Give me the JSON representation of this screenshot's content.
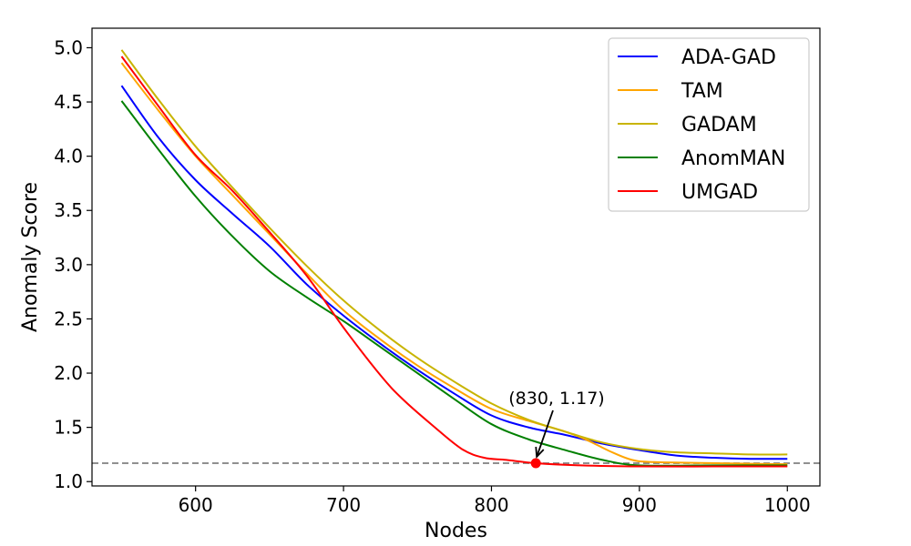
{
  "chart_data": {
    "type": "line",
    "title": "",
    "xlabel": "Nodes",
    "ylabel": "Anomaly Score",
    "xlim": [
      530,
      1022
    ],
    "ylim": [
      0.96,
      5.18
    ],
    "xticks": [
      600,
      700,
      800,
      900,
      1000
    ],
    "yticks": [
      1.0,
      1.5,
      2.0,
      2.5,
      3.0,
      3.5,
      4.0,
      4.5,
      5.0
    ],
    "xtick_labels": [
      "600",
      "700",
      "800",
      "900",
      "1000"
    ],
    "ytick_labels": [
      "1.0",
      "1.5",
      "2.0",
      "2.5",
      "3.0",
      "3.5",
      "4.0",
      "4.5",
      "5.0"
    ],
    "legend_position": "top-right",
    "reference_line": {
      "y": 1.17,
      "style": "dashed",
      "color": "#808080"
    },
    "annotation": {
      "x": 830,
      "y": 1.17,
      "text": "(830, 1.17)",
      "color": "#ff0000"
    },
    "series": [
      {
        "name": "ADA-GAD",
        "color": "#0000ff",
        "x": [
          550,
          575,
          600,
          625,
          650,
          675,
          700,
          725,
          750,
          775,
          800,
          825,
          850,
          875,
          900,
          925,
          950,
          975,
          1000
        ],
        "y": [
          4.65,
          4.17,
          3.78,
          3.47,
          3.17,
          2.82,
          2.53,
          2.27,
          2.03,
          1.81,
          1.61,
          1.5,
          1.43,
          1.35,
          1.29,
          1.24,
          1.22,
          1.21,
          1.21
        ]
      },
      {
        "name": "TAM",
        "color": "#ffa500",
        "x": [
          550,
          575,
          600,
          625,
          650,
          675,
          700,
          725,
          750,
          775,
          800,
          825,
          850,
          865,
          880,
          895,
          910,
          950,
          1000
        ],
        "y": [
          4.86,
          4.42,
          4.0,
          3.64,
          3.28,
          2.92,
          2.58,
          2.31,
          2.07,
          1.86,
          1.67,
          1.56,
          1.46,
          1.38,
          1.28,
          1.2,
          1.18,
          1.17,
          1.16
        ]
      },
      {
        "name": "GADAM",
        "color": "#c8b400",
        "x": [
          550,
          575,
          600,
          625,
          650,
          675,
          700,
          725,
          750,
          775,
          800,
          825,
          850,
          875,
          900,
          925,
          950,
          975,
          1000
        ],
        "y": [
          4.98,
          4.52,
          4.09,
          3.71,
          3.34,
          2.99,
          2.67,
          2.39,
          2.14,
          1.92,
          1.72,
          1.57,
          1.46,
          1.36,
          1.3,
          1.27,
          1.26,
          1.25,
          1.25
        ]
      },
      {
        "name": "AnomMAN",
        "color": "#008000",
        "x": [
          550,
          575,
          600,
          625,
          650,
          675,
          700,
          725,
          750,
          775,
          800,
          825,
          850,
          875,
          900,
          950,
          1000
        ],
        "y": [
          4.51,
          4.06,
          3.63,
          3.26,
          2.94,
          2.7,
          2.48,
          2.24,
          2.0,
          1.76,
          1.53,
          1.39,
          1.29,
          1.2,
          1.15,
          1.15,
          1.15
        ]
      },
      {
        "name": "UMGAD",
        "color": "#ff0000",
        "x": [
          550,
          575,
          600,
          625,
          650,
          675,
          700,
          725,
          740,
          760,
          780,
          795,
          810,
          830,
          860,
          900,
          950,
          1000
        ],
        "y": [
          4.92,
          4.46,
          4.01,
          3.68,
          3.3,
          2.9,
          2.42,
          1.98,
          1.76,
          1.52,
          1.3,
          1.22,
          1.2,
          1.17,
          1.15,
          1.14,
          1.14,
          1.14
        ]
      }
    ]
  }
}
